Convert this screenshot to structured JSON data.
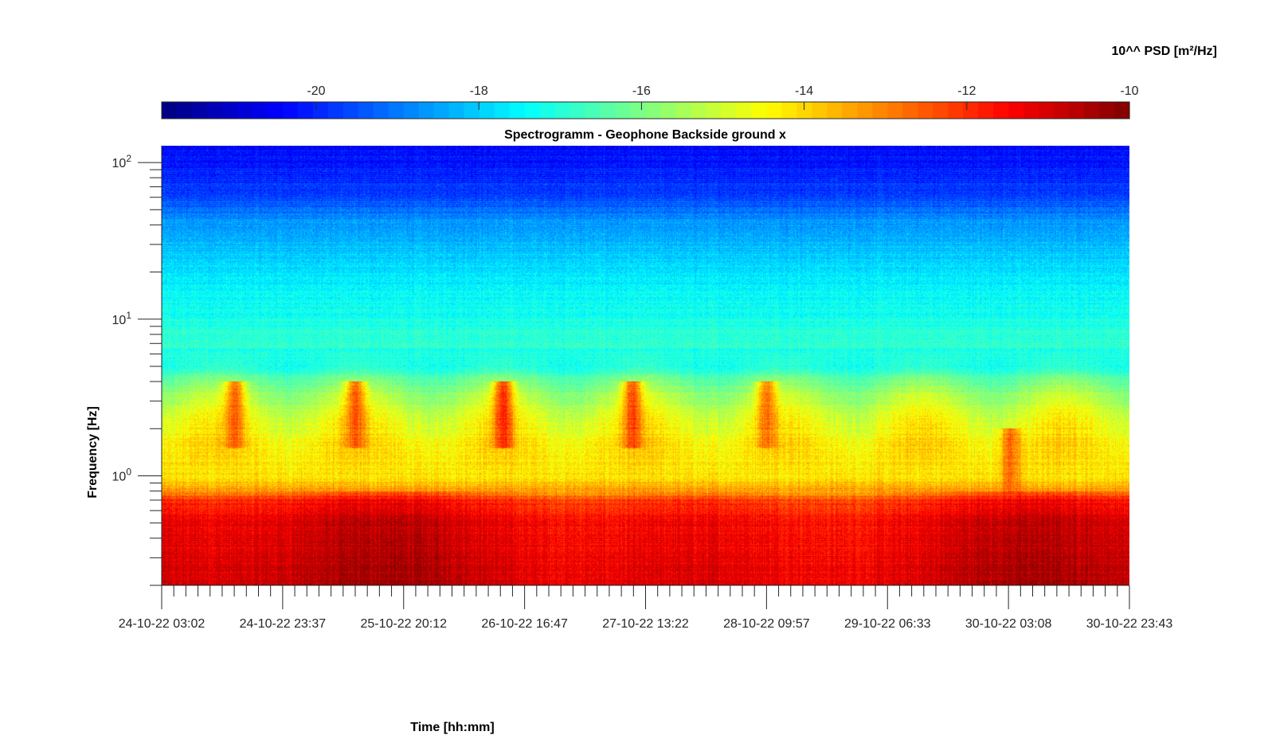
{
  "chart_data": {
    "type": "heatmap",
    "title": "Spectrogramm - Geophone Backside ground x",
    "xlabel": "Time [hh:mm]",
    "ylabel": "Frequency [Hz]",
    "colorbar": {
      "label": "10^^ PSD [m²/Hz]",
      "range": [
        -21.9,
        -10
      ],
      "ticks": [
        "-20",
        "-18",
        "-16",
        "-14",
        "-12",
        "-10"
      ],
      "tick_values": [
        -20,
        -18,
        -16,
        -14,
        -12,
        -10
      ],
      "colormap": "jet",
      "placement": "top"
    },
    "x_ticks": [
      "24-10-22 03:02",
      "24-10-22 23:37",
      "25-10-22 20:12",
      "26-10-22 16:47",
      "27-10-22 13:22",
      "28-10-22 09:57",
      "29-10-22 06:33",
      "30-10-22 03:08",
      "30-10-22 23:43"
    ],
    "xlim": [
      "24-10-22 03:02",
      "30-10-22 23:43"
    ],
    "y_scale": "log",
    "ylim": [
      0.2,
      128
    ],
    "y_ticks": [
      {
        "base": "10",
        "exp": "2",
        "value": 100
      },
      {
        "base": "10",
        "exp": "1",
        "value": 10
      },
      {
        "base": "10",
        "exp": "0",
        "value": 1
      }
    ],
    "psd_profile": [
      {
        "f": 0.2,
        "psd": -10.9
      },
      {
        "f": 0.3,
        "psd": -11.1
      },
      {
        "f": 0.5,
        "psd": -11.3
      },
      {
        "f": 0.7,
        "psd": -11.9
      },
      {
        "f": 0.8,
        "psd": -13.3
      },
      {
        "f": 1.0,
        "psd": -14.2
      },
      {
        "f": 1.5,
        "psd": -14.5
      },
      {
        "f": 2.5,
        "psd": -15.3
      },
      {
        "f": 4.0,
        "psd": -16.4
      },
      {
        "f": 5.0,
        "psd": -17.3
      },
      {
        "f": 7.0,
        "psd": -16.9
      },
      {
        "f": 9.0,
        "psd": -17.1
      },
      {
        "f": 15.0,
        "psd": -17.5
      },
      {
        "f": 25.0,
        "psd": -18.0
      },
      {
        "f": 40.0,
        "psd": -18.6
      },
      {
        "f": 60.0,
        "psd": -19.6
      },
      {
        "f": 128.0,
        "psd": -20.4
      }
    ],
    "daytime_bursts": [
      {
        "t": "24-10-22 15:30",
        "f_range": [
          1.5,
          4
        ],
        "psd": -13.2
      },
      {
        "t": "25-10-22 12:00",
        "f_range": [
          1.5,
          4
        ],
        "psd": -13.2
      },
      {
        "t": "26-10-22 13:10",
        "f_range": [
          1.5,
          4
        ],
        "psd": -12.6
      },
      {
        "t": "27-10-22 11:10",
        "f_range": [
          1.5,
          4
        ],
        "psd": -13.0
      },
      {
        "t": "28-10-22 10:00",
        "f_range": [
          1.5,
          4
        ],
        "psd": -13.4
      },
      {
        "t": "30-10-22 03:30",
        "f_range": [
          0.7,
          2
        ],
        "psd": -12.6
      }
    ],
    "grid": false
  }
}
